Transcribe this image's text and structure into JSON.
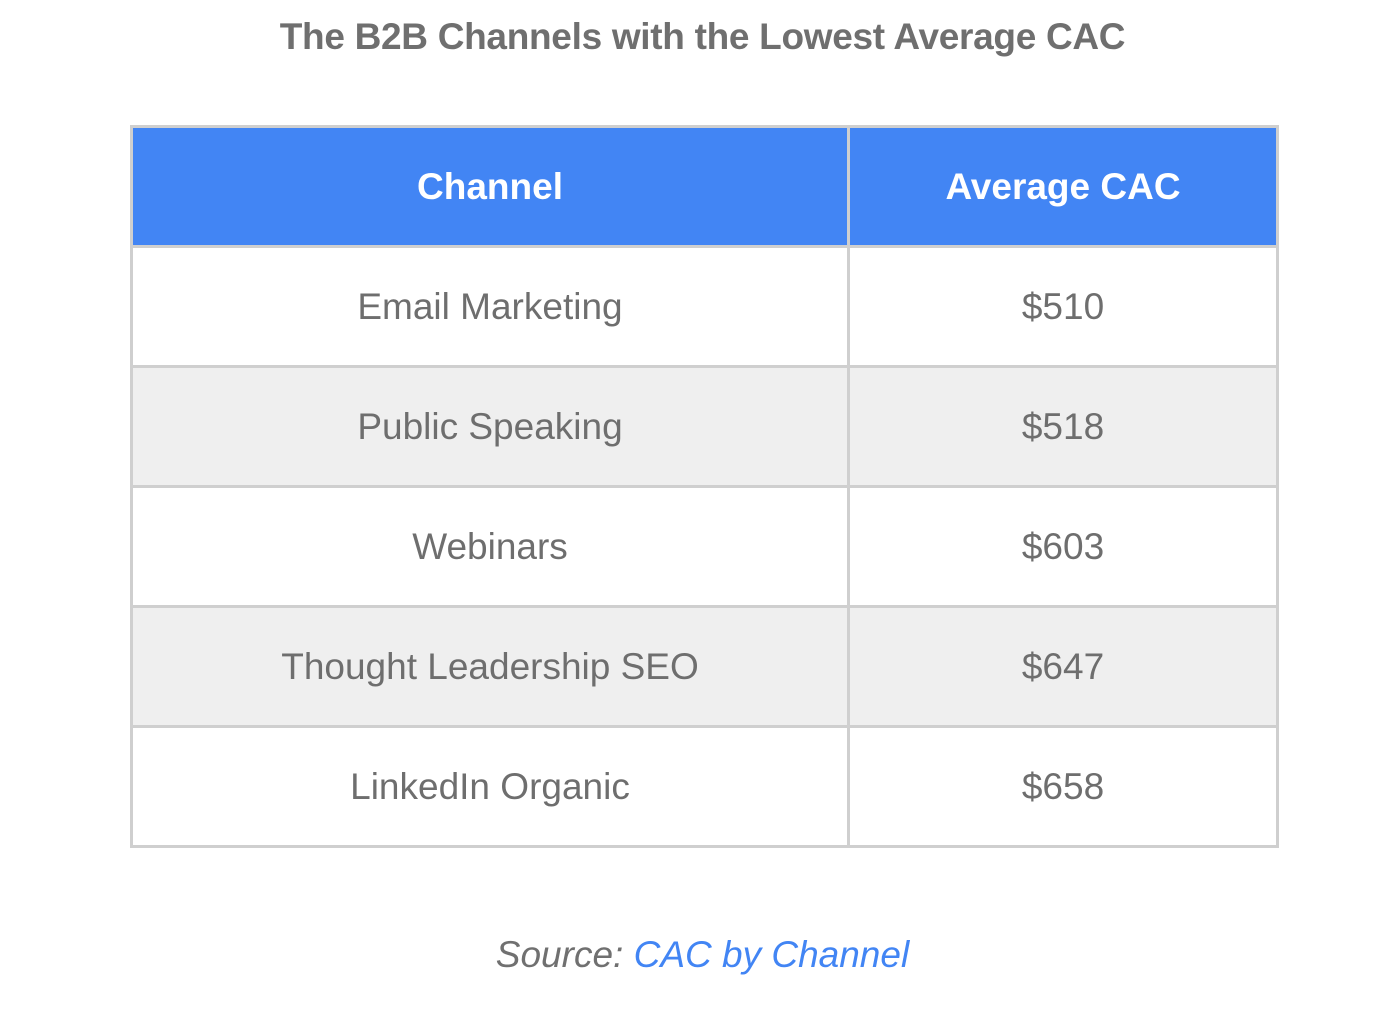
{
  "title": "The B2B Channels with the Lowest Average CAC",
  "table": {
    "headers": [
      "Channel",
      "Average CAC"
    ],
    "rows": [
      {
        "channel": "Email Marketing",
        "cac": "$510"
      },
      {
        "channel": "Public Speaking",
        "cac": "$518"
      },
      {
        "channel": "Webinars",
        "cac": "$603"
      },
      {
        "channel": "Thought Leadership SEO",
        "cac": "$647"
      },
      {
        "channel": "LinkedIn Organic",
        "cac": "$658"
      }
    ]
  },
  "source": {
    "label": "Source:",
    "link_text": "CAC by Channel"
  },
  "colors": {
    "header_bg": "#4285f4",
    "header_text": "#ffffff",
    "alt_row_bg": "#efefef",
    "text": "#6e6e6e",
    "link": "#4285f4",
    "border": "#cfcfcf"
  }
}
